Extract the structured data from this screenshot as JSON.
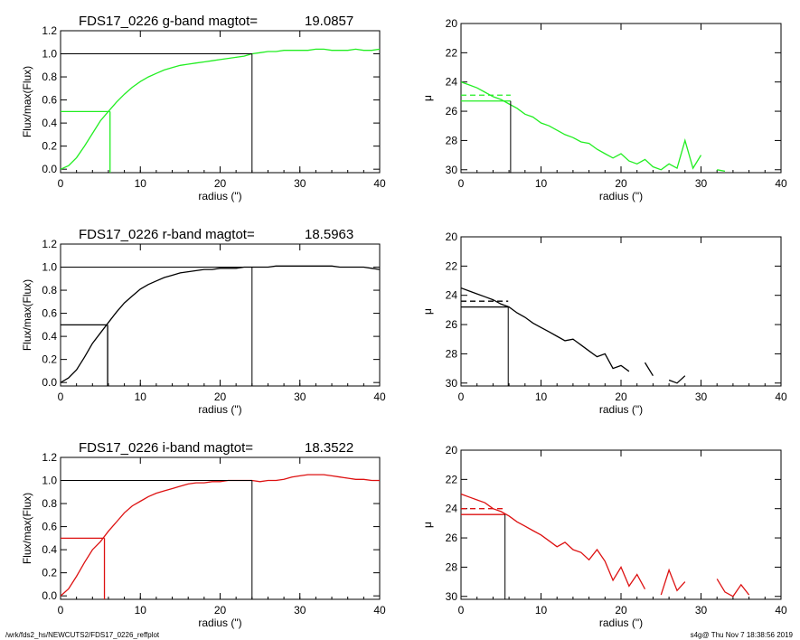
{
  "footer": {
    "path": "/wrk/fds2_hs/NEWCUTS2/FDS17_0226_reffplot",
    "stamp": "s4g@  Thu Nov  7 18:38:56 2019"
  },
  "chart_data": [
    {
      "type": "line",
      "panel": "growth-curve",
      "band": "g",
      "color": "#22ee22",
      "title": "FDS17_0226 g-band  magtot=",
      "magtot": "19.0857",
      "xlabel": "radius (\")",
      "ylabel": "Flux/max(Flux)",
      "xlim": [
        0,
        40
      ],
      "ylim": [
        -0.03,
        1.2
      ],
      "xticks": [
        "0",
        "10",
        "20",
        "30",
        "40"
      ],
      "yticks": [
        "0.0",
        "0.2",
        "0.4",
        "0.6",
        "0.8",
        "1.0",
        "1.2"
      ],
      "x": [
        0,
        1,
        2,
        3,
        4,
        5,
        6,
        7,
        8,
        9,
        10,
        11,
        12,
        13,
        14,
        15,
        16,
        17,
        18,
        19,
        20,
        21,
        22,
        23,
        24,
        25,
        26,
        27,
        28,
        29,
        30,
        31,
        32,
        33,
        34,
        35,
        36,
        37,
        38,
        39,
        40
      ],
      "y": [
        0.0,
        0.03,
        0.1,
        0.2,
        0.31,
        0.42,
        0.5,
        0.58,
        0.65,
        0.71,
        0.76,
        0.8,
        0.83,
        0.86,
        0.88,
        0.9,
        0.91,
        0.92,
        0.93,
        0.94,
        0.95,
        0.96,
        0.97,
        0.98,
        1.0,
        1.01,
        1.02,
        1.02,
        1.03,
        1.03,
        1.03,
        1.03,
        1.04,
        1.04,
        1.03,
        1.03,
        1.03,
        1.04,
        1.03,
        1.03,
        1.04
      ],
      "half_light": {
        "x": 6.2,
        "y": 0.5
      },
      "total": {
        "x": 24,
        "y": 1.0
      }
    },
    {
      "type": "line",
      "panel": "surface-brightness",
      "band": "g",
      "color": "#22ee22",
      "xlabel": "radius (\")",
      "ylabel": "μ",
      "xlim": [
        0,
        40
      ],
      "ylim": [
        30.2,
        20
      ],
      "xticks": [
        "0",
        "10",
        "20",
        "30",
        "40"
      ],
      "yticks": [
        "20",
        "22",
        "24",
        "26",
        "28",
        "30"
      ],
      "x": [
        0,
        1,
        2,
        3,
        4,
        5,
        6,
        7,
        8,
        9,
        10,
        11,
        12,
        13,
        14,
        15,
        16,
        17,
        18,
        19,
        20,
        21,
        22,
        23,
        24,
        25,
        26,
        27,
        28,
        29,
        30,
        31,
        32,
        33,
        34,
        35,
        36
      ],
      "y": [
        24.0,
        24.2,
        24.4,
        24.7,
        25.0,
        25.2,
        25.5,
        25.8,
        26.2,
        26.4,
        26.8,
        27.0,
        27.3,
        27.6,
        27.8,
        28.1,
        28.2,
        28.6,
        28.9,
        29.2,
        28.9,
        29.4,
        29.6,
        29.3,
        29.8,
        30.0,
        29.6,
        29.9,
        28.0,
        29.9,
        29.0,
        null,
        30.0,
        30.1,
        null,
        null,
        30.0
      ],
      "mu_e": 25.3,
      "mu_mean_e": 24.9,
      "r_e": 6.2
    },
    {
      "type": "line",
      "panel": "growth-curve",
      "band": "r",
      "color": "#000000",
      "title": "FDS17_0226 r-band  magtot=",
      "magtot": "18.5963",
      "xlabel": "radius (\")",
      "ylabel": "Flux/max(Flux)",
      "xlim": [
        0,
        40
      ],
      "ylim": [
        -0.03,
        1.2
      ],
      "xticks": [
        "0",
        "10",
        "20",
        "30",
        "40"
      ],
      "yticks": [
        "0.0",
        "0.2",
        "0.4",
        "0.6",
        "0.8",
        "1.0",
        "1.2"
      ],
      "x": [
        0,
        1,
        2,
        3,
        4,
        5,
        6,
        7,
        8,
        9,
        10,
        11,
        12,
        13,
        14,
        15,
        16,
        17,
        18,
        19,
        20,
        21,
        22,
        23,
        24,
        25,
        26,
        27,
        28,
        29,
        30,
        31,
        32,
        33,
        34,
        35,
        36,
        37,
        38,
        39,
        40
      ],
      "y": [
        0.0,
        0.04,
        0.11,
        0.22,
        0.34,
        0.43,
        0.52,
        0.61,
        0.69,
        0.75,
        0.81,
        0.85,
        0.88,
        0.91,
        0.93,
        0.95,
        0.96,
        0.97,
        0.98,
        0.98,
        0.99,
        0.99,
        0.99,
        1.0,
        1.0,
        1.0,
        1.0,
        1.01,
        1.01,
        1.01,
        1.01,
        1.01,
        1.01,
        1.01,
        1.01,
        1.0,
        1.0,
        1.0,
        1.0,
        0.99,
        0.98
      ],
      "half_light": {
        "x": 5.9,
        "y": 0.5
      },
      "total": {
        "x": 24,
        "y": 1.0
      }
    },
    {
      "type": "line",
      "panel": "surface-brightness",
      "band": "r",
      "color": "#000000",
      "xlabel": "radius (\")",
      "ylabel": "μ",
      "xlim": [
        0,
        40
      ],
      "ylim": [
        30.2,
        20
      ],
      "xticks": [
        "0",
        "10",
        "20",
        "30",
        "40"
      ],
      "yticks": [
        "20",
        "22",
        "24",
        "26",
        "28",
        "30"
      ],
      "x": [
        0,
        1,
        2,
        3,
        4,
        5,
        6,
        7,
        8,
        9,
        10,
        11,
        12,
        13,
        14,
        15,
        16,
        17,
        18,
        19,
        20,
        21,
        22,
        23,
        24,
        25,
        26,
        27,
        28,
        29,
        30,
        31,
        32,
        33,
        34
      ],
      "y": [
        23.5,
        23.7,
        23.9,
        24.1,
        24.3,
        24.6,
        24.8,
        25.2,
        25.5,
        25.9,
        26.2,
        26.5,
        26.8,
        27.1,
        27.0,
        27.4,
        27.8,
        28.2,
        28.0,
        29.0,
        28.8,
        29.2,
        null,
        28.6,
        29.5,
        null,
        29.8,
        30.0,
        29.5,
        null,
        null,
        29.9,
        null,
        null,
        29.8
      ],
      "mu_e": 24.8,
      "mu_mean_e": 24.4,
      "r_e": 5.9
    },
    {
      "type": "line",
      "panel": "growth-curve",
      "band": "i",
      "color": "#dd1111",
      "title": "FDS17_0226 i-band  magtot=",
      "magtot": "18.3522",
      "xlabel": "radius (\")",
      "ylabel": "Flux/max(Flux)",
      "xlim": [
        0,
        40
      ],
      "ylim": [
        -0.03,
        1.2
      ],
      "xticks": [
        "0",
        "10",
        "20",
        "30",
        "40"
      ],
      "yticks": [
        "0.0",
        "0.2",
        "0.4",
        "0.6",
        "0.8",
        "1.0",
        "1.2"
      ],
      "x": [
        0,
        1,
        2,
        3,
        4,
        5,
        6,
        7,
        8,
        9,
        10,
        11,
        12,
        13,
        14,
        15,
        16,
        17,
        18,
        19,
        20,
        21,
        22,
        23,
        24,
        25,
        26,
        27,
        28,
        29,
        30,
        31,
        32,
        33,
        34,
        35,
        36,
        37,
        38,
        39,
        40
      ],
      "y": [
        0.0,
        0.06,
        0.17,
        0.29,
        0.4,
        0.47,
        0.56,
        0.64,
        0.72,
        0.78,
        0.82,
        0.86,
        0.89,
        0.91,
        0.93,
        0.95,
        0.97,
        0.98,
        0.98,
        0.99,
        0.99,
        1.0,
        1.0,
        1.0,
        1.0,
        0.99,
        1.0,
        1.0,
        1.01,
        1.03,
        1.04,
        1.05,
        1.05,
        1.05,
        1.04,
        1.03,
        1.02,
        1.01,
        1.01,
        1.0,
        1.0
      ],
      "half_light": {
        "x": 5.5,
        "y": 0.5
      },
      "total": {
        "x": 24,
        "y": 1.0
      }
    },
    {
      "type": "line",
      "panel": "surface-brightness",
      "band": "i",
      "color": "#dd1111",
      "xlabel": "radius (\")",
      "ylabel": "μ",
      "xlim": [
        0,
        40
      ],
      "ylim": [
        30.2,
        20
      ],
      "xticks": [
        "0",
        "10",
        "20",
        "30",
        "40"
      ],
      "yticks": [
        "20",
        "22",
        "24",
        "26",
        "28",
        "30"
      ],
      "x": [
        0,
        1,
        2,
        3,
        4,
        5,
        6,
        7,
        8,
        9,
        10,
        11,
        12,
        13,
        14,
        15,
        16,
        17,
        18,
        19,
        20,
        21,
        22,
        23,
        24,
        25,
        26,
        27,
        28,
        29,
        30,
        31,
        32,
        33,
        34,
        35,
        36,
        37,
        38
      ],
      "y": [
        23.0,
        23.2,
        23.4,
        23.6,
        24.0,
        24.2,
        24.5,
        24.9,
        25.2,
        25.5,
        25.8,
        26.2,
        26.6,
        26.3,
        26.8,
        27.0,
        27.5,
        26.8,
        27.6,
        28.9,
        28.0,
        29.3,
        28.5,
        29.5,
        null,
        29.9,
        28.2,
        29.6,
        29.0,
        null,
        30.0,
        null,
        28.8,
        29.7,
        30.0,
        29.2,
        29.9,
        null,
        29.5
      ],
      "mu_e": 24.4,
      "mu_mean_e": 24.0,
      "r_e": 5.5
    }
  ]
}
